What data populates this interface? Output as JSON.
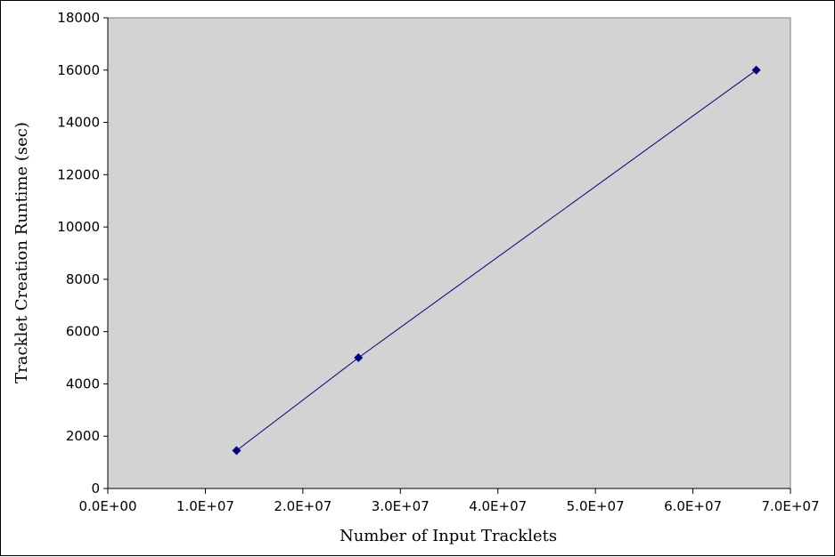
{
  "chart_data": {
    "type": "scatter",
    "title": "",
    "xlabel": "Number of Input Tracklets",
    "ylabel": "Tracklet Creation Runtime (sec)",
    "xlim": [
      0,
      70000000
    ],
    "ylim": [
      0,
      18000
    ],
    "x_ticks": [
      0,
      10000000,
      20000000,
      30000000,
      40000000,
      50000000,
      60000000,
      70000000
    ],
    "x_tick_labels": [
      "0.0E+00",
      "1.0E+07",
      "2.0E+07",
      "3.0E+07",
      "4.0E+07",
      "5.0E+07",
      "6.0E+07",
      "7.0E+07"
    ],
    "y_ticks": [
      0,
      2000,
      4000,
      6000,
      8000,
      10000,
      12000,
      14000,
      16000,
      18000
    ],
    "y_tick_labels": [
      "0",
      "2000",
      "4000",
      "6000",
      "8000",
      "10000",
      "12000",
      "14000",
      "16000",
      "18000"
    ],
    "grid": false,
    "legend": "none",
    "marker": "diamond",
    "connect_points": true,
    "plot_background": "#d3d3d3",
    "series": [
      {
        "color": "#000080",
        "points": [
          {
            "x": 13200000,
            "y": 1450
          },
          {
            "x": 25700000,
            "y": 5000
          },
          {
            "x": 66500000,
            "y": 16000
          }
        ]
      }
    ]
  }
}
